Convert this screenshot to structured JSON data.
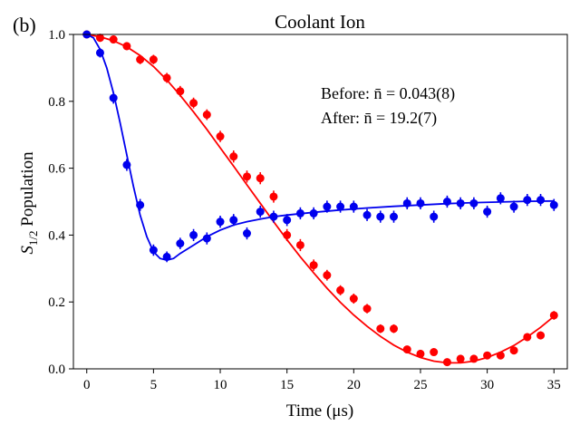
{
  "panel_label": "(b)",
  "annotations": {
    "before_text": "Before: n̄ = 0.043(8)",
    "after_text": "After: n̄ = 19.2(7)"
  },
  "chart_data": {
    "type": "scatter",
    "title": "Coolant Ion",
    "xlabel": "Time (μs)",
    "ylabel": "S1/2 Population",
    "ylabel_main": "S",
    "ylabel_sub": "1/2",
    "ylabel_rest": " Population",
    "xlim": [
      -1,
      36
    ],
    "ylim": [
      0,
      1.0
    ],
    "xticks": [
      0,
      5,
      10,
      15,
      20,
      25,
      30,
      35
    ],
    "yticks": [
      0.0,
      0.2,
      0.4,
      0.6,
      0.8,
      1.0
    ],
    "xtick_labels": [
      "0",
      "5",
      "10",
      "15",
      "20",
      "25",
      "30",
      "35"
    ],
    "ytick_labels": [
      "0.0",
      "0.2",
      "0.4",
      "0.6",
      "0.8",
      "1.0"
    ],
    "grid": false,
    "series": [
      {
        "name": "After (red)",
        "color": "#ff0000",
        "x": [
          0,
          1,
          2,
          3,
          4,
          5,
          6,
          7,
          8,
          9,
          10,
          11,
          12,
          13,
          14,
          15,
          16,
          17,
          18,
          19,
          20,
          21,
          22,
          23,
          24,
          25,
          26,
          27,
          28,
          29,
          30,
          31,
          32,
          33,
          34,
          35
        ],
        "y": [
          1.0,
          0.99,
          0.985,
          0.965,
          0.925,
          0.925,
          0.87,
          0.83,
          0.795,
          0.76,
          0.695,
          0.635,
          0.575,
          0.57,
          0.515,
          0.4,
          0.37,
          0.31,
          0.28,
          0.235,
          0.21,
          0.18,
          0.12,
          0.12,
          0.058,
          0.045,
          0.05,
          0.02,
          0.03,
          0.03,
          0.04,
          0.04,
          0.055,
          0.095,
          0.1,
          0.16
        ],
        "err": [
          0.01,
          0.012,
          0.012,
          0.012,
          0.014,
          0.014,
          0.015,
          0.016,
          0.016,
          0.016,
          0.017,
          0.018,
          0.018,
          0.018,
          0.018,
          0.018,
          0.018,
          0.017,
          0.016,
          0.015,
          0.015,
          0.014,
          0.013,
          0.013,
          0.011,
          0.01,
          0.01,
          0.008,
          0.009,
          0.009,
          0.01,
          0.01,
          0.011,
          0.012,
          0.012,
          0.013
        ],
        "fit": [
          [
            0,
            1.0
          ],
          [
            1,
            0.993
          ],
          [
            2,
            0.981
          ],
          [
            3,
            0.963
          ],
          [
            4,
            0.937
          ],
          [
            5,
            0.904
          ],
          [
            6,
            0.864
          ],
          [
            7,
            0.818
          ],
          [
            8,
            0.768
          ],
          [
            9,
            0.716
          ],
          [
            10,
            0.661
          ],
          [
            11,
            0.606
          ],
          [
            12,
            0.55
          ],
          [
            13,
            0.495
          ],
          [
            14,
            0.44
          ],
          [
            15,
            0.386
          ],
          [
            16,
            0.335
          ],
          [
            17,
            0.287
          ],
          [
            18,
            0.241
          ],
          [
            19,
            0.199
          ],
          [
            20,
            0.161
          ],
          [
            21,
            0.127
          ],
          [
            22,
            0.097
          ],
          [
            23,
            0.071
          ],
          [
            24,
            0.05
          ],
          [
            25,
            0.034
          ],
          [
            26,
            0.023
          ],
          [
            27,
            0.018
          ],
          [
            28,
            0.018
          ],
          [
            29,
            0.023
          ],
          [
            30,
            0.034
          ],
          [
            31,
            0.05
          ],
          [
            32,
            0.07
          ],
          [
            33,
            0.095
          ],
          [
            34,
            0.124
          ],
          [
            35,
            0.157
          ]
        ]
      },
      {
        "name": "Before (blue)",
        "color": "#0000ee",
        "x": [
          0,
          1,
          2,
          3,
          4,
          5,
          6,
          7,
          8,
          9,
          10,
          11,
          12,
          13,
          14,
          15,
          16,
          17,
          18,
          19,
          20,
          21,
          22,
          23,
          24,
          25,
          26,
          27,
          28,
          29,
          30,
          31,
          32,
          33,
          34,
          35
        ],
        "y": [
          1.0,
          0.945,
          0.81,
          0.61,
          0.49,
          0.355,
          0.335,
          0.375,
          0.4,
          0.39,
          0.44,
          0.445,
          0.405,
          0.47,
          0.455,
          0.445,
          0.465,
          0.465,
          0.485,
          0.485,
          0.485,
          0.46,
          0.455,
          0.455,
          0.495,
          0.495,
          0.455,
          0.5,
          0.495,
          0.495,
          0.47,
          0.51,
          0.485,
          0.505,
          0.505,
          0.49
        ],
        "err": [
          0.01,
          0.014,
          0.017,
          0.018,
          0.018,
          0.017,
          0.016,
          0.017,
          0.018,
          0.018,
          0.018,
          0.018,
          0.018,
          0.018,
          0.018,
          0.018,
          0.018,
          0.018,
          0.018,
          0.018,
          0.018,
          0.018,
          0.018,
          0.018,
          0.018,
          0.018,
          0.018,
          0.018,
          0.018,
          0.018,
          0.018,
          0.018,
          0.018,
          0.018,
          0.018,
          0.018
        ],
        "fit": [
          [
            0,
            1.0
          ],
          [
            0.5,
            0.99
          ],
          [
            1,
            0.955
          ],
          [
            1.5,
            0.9
          ],
          [
            2,
            0.825
          ],
          [
            2.5,
            0.735
          ],
          [
            3,
            0.64
          ],
          [
            3.5,
            0.545
          ],
          [
            4,
            0.46
          ],
          [
            4.5,
            0.395
          ],
          [
            5,
            0.35
          ],
          [
            5.5,
            0.33
          ],
          [
            6,
            0.325
          ],
          [
            6.5,
            0.33
          ],
          [
            7,
            0.345
          ],
          [
            8,
            0.37
          ],
          [
            9,
            0.395
          ],
          [
            10,
            0.415
          ],
          [
            11,
            0.43
          ],
          [
            12,
            0.44
          ],
          [
            13,
            0.448
          ],
          [
            14,
            0.455
          ],
          [
            15,
            0.46
          ],
          [
            17,
            0.468
          ],
          [
            19,
            0.475
          ],
          [
            21,
            0.481
          ],
          [
            23,
            0.486
          ],
          [
            25,
            0.49
          ],
          [
            27,
            0.494
          ],
          [
            29,
            0.497
          ],
          [
            31,
            0.499
          ],
          [
            33,
            0.501
          ],
          [
            35,
            0.502
          ]
        ]
      }
    ]
  }
}
